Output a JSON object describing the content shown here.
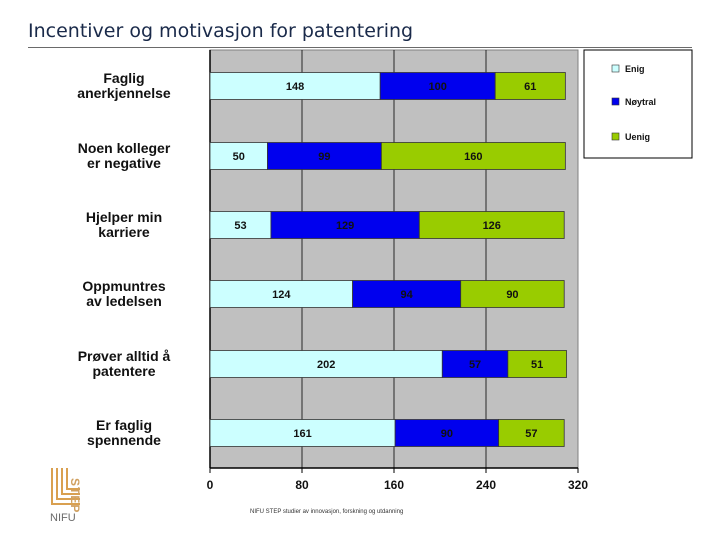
{
  "slide": {
    "title": "Incentiver og motivasjon for patentering",
    "footer": "NIFU STEP studier av innovasjon, forskning og utdanning",
    "logo_text": "NIFU",
    "logo_step": "STEP"
  },
  "colors": {
    "enig": "#ccffff",
    "noytral": "#0000ee",
    "uenig": "#99cc00",
    "plot_bg": "#c0c0c0"
  },
  "chart_data": {
    "type": "bar",
    "orientation": "horizontal",
    "stacked": true,
    "categories": [
      [
        "Faglig",
        "anerkjennelse"
      ],
      [
        "Noen kolleger",
        "er negative"
      ],
      [
        "Hjelper min",
        "karriere"
      ],
      [
        "Oppmuntres",
        "av ledelsen"
      ],
      [
        "Prøver alltid å",
        "patentere"
      ],
      [
        "Er faglig",
        "spennende"
      ]
    ],
    "series": [
      {
        "name": "Enig",
        "values": [
          148,
          50,
          53,
          124,
          202,
          161
        ]
      },
      {
        "name": "Nøytral",
        "values": [
          100,
          99,
          129,
          94,
          57,
          90
        ]
      },
      {
        "name": "Uenig",
        "values": [
          61,
          160,
          126,
          90,
          51,
          57
        ]
      }
    ],
    "xlim": [
      0,
      320
    ],
    "xticks": [
      0,
      80,
      160,
      240,
      320
    ],
    "grid": true,
    "legend_position": "top-right"
  }
}
